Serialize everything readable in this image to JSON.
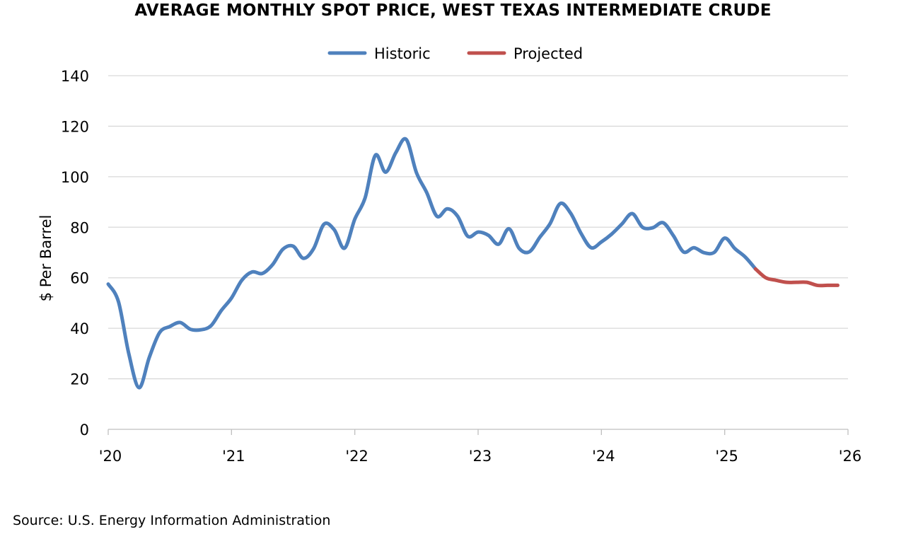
{
  "chart_data": {
    "type": "line",
    "title": "AVERAGE MONTHLY SPOT PRICE, WEST TEXAS INTERMEDIATE CRUDE",
    "xlabel": "",
    "ylabel": "$ Per Barrel",
    "ylim": [
      0,
      140
    ],
    "yticks": [
      0,
      20,
      40,
      60,
      80,
      100,
      120,
      140
    ],
    "xlim": [
      "2020-01",
      "2026-01"
    ],
    "xticks": [
      {
        "date": "2020-01",
        "label": "'20"
      },
      {
        "date": "2021-01",
        "label": "'21"
      },
      {
        "date": "2022-01",
        "label": "'22"
      },
      {
        "date": "2023-01",
        "label": "'23"
      },
      {
        "date": "2024-01",
        "label": "'24"
      },
      {
        "date": "2025-01",
        "label": "'25"
      },
      {
        "date": "2026-01",
        "label": "'26"
      }
    ],
    "grid": "horizontal",
    "legend_position": "top-center",
    "source": "Source: U.S. Energy Information Administration",
    "series": [
      {
        "name": "Historic",
        "color": "#4f81bd",
        "points": [
          [
            "2020-01",
            57.5
          ],
          [
            "2020-02",
            50.5
          ],
          [
            "2020-03",
            30
          ],
          [
            "2020-04",
            16.5
          ],
          [
            "2020-05",
            28.5
          ],
          [
            "2020-06",
            38.3
          ],
          [
            "2020-07",
            40.7
          ],
          [
            "2020-08",
            42.3
          ],
          [
            "2020-09",
            39.6
          ],
          [
            "2020-10",
            39.4
          ],
          [
            "2020-11",
            41
          ],
          [
            "2020-12",
            47
          ],
          [
            "2021-01",
            52
          ],
          [
            "2021-02",
            59
          ],
          [
            "2021-03",
            62.3
          ],
          [
            "2021-04",
            61.7
          ],
          [
            "2021-05",
            65.2
          ],
          [
            "2021-06",
            71.3
          ],
          [
            "2021-07",
            72.5
          ],
          [
            "2021-08",
            67.7
          ],
          [
            "2021-09",
            71.6
          ],
          [
            "2021-10",
            81.2
          ],
          [
            "2021-11",
            79
          ],
          [
            "2021-12",
            71.7
          ],
          [
            "2022-01",
            83.2
          ],
          [
            "2022-02",
            91.6
          ],
          [
            "2022-03",
            108.5
          ],
          [
            "2022-04",
            101.8
          ],
          [
            "2022-05",
            109.6
          ],
          [
            "2022-06",
            114.8
          ],
          [
            "2022-07",
            101.6
          ],
          [
            "2022-08",
            93.7
          ],
          [
            "2022-09",
            84.3
          ],
          [
            "2022-10",
            87.3
          ],
          [
            "2022-11",
            84.4
          ],
          [
            "2022-12",
            76.4
          ],
          [
            "2023-01",
            78.1
          ],
          [
            "2023-02",
            76.8
          ],
          [
            "2023-03",
            73.3
          ],
          [
            "2023-04",
            79.4
          ],
          [
            "2023-05",
            71.6
          ],
          [
            "2023-06",
            70.3
          ],
          [
            "2023-07",
            76
          ],
          [
            "2023-08",
            81.4
          ],
          [
            "2023-09",
            89.4
          ],
          [
            "2023-10",
            85.6
          ],
          [
            "2023-11",
            77.7
          ],
          [
            "2023-12",
            71.9
          ],
          [
            "2024-01",
            74.2
          ],
          [
            "2024-02",
            77.3
          ],
          [
            "2024-03",
            81.3
          ],
          [
            "2024-04",
            85.4
          ],
          [
            "2024-05",
            80
          ],
          [
            "2024-06",
            79.8
          ],
          [
            "2024-07",
            81.8
          ],
          [
            "2024-08",
            76.7
          ],
          [
            "2024-09",
            70.2
          ],
          [
            "2024-10",
            71.9
          ],
          [
            "2024-11",
            69.9
          ],
          [
            "2024-12",
            70.1
          ],
          [
            "2025-01",
            75.7
          ],
          [
            "2025-02",
            71.5
          ],
          [
            "2025-03",
            68.2
          ],
          [
            "2025-04",
            63.5
          ]
        ]
      },
      {
        "name": "Projected",
        "color": "#c0504d",
        "points": [
          [
            "2025-04",
            63.5
          ],
          [
            "2025-05",
            60
          ],
          [
            "2025-06",
            59
          ],
          [
            "2025-07",
            58.2
          ],
          [
            "2025-08",
            58.2
          ],
          [
            "2025-09",
            58.2
          ],
          [
            "2025-10",
            57
          ],
          [
            "2025-11",
            57
          ],
          [
            "2025-12",
            57
          ]
        ]
      }
    ]
  }
}
